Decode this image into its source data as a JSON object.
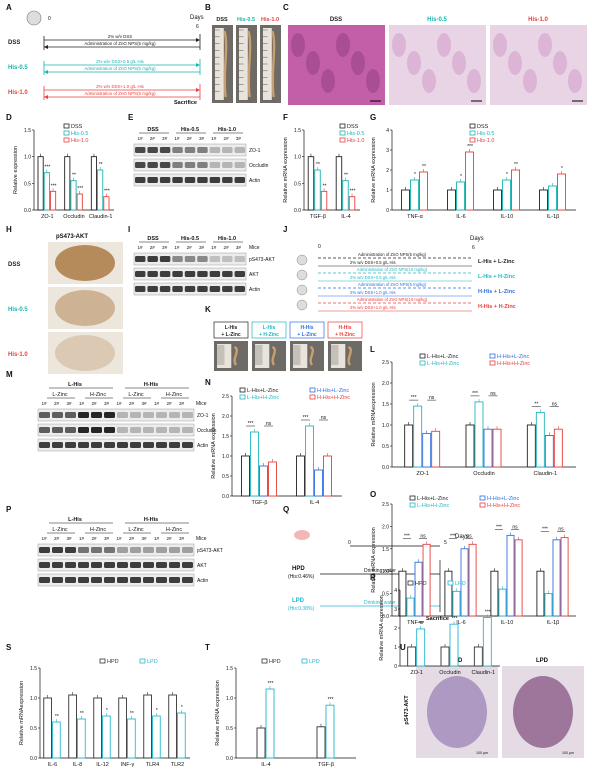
{
  "panel_letters": [
    "A",
    "B",
    "C",
    "D",
    "E",
    "F",
    "G",
    "H",
    "I",
    "J",
    "K",
    "L",
    "M",
    "N",
    "O",
    "P",
    "Q",
    "R",
    "S",
    "T",
    "U"
  ],
  "colors": {
    "dss": "#222222",
    "his05": "#17b5b0",
    "his10": "#e8403c",
    "lHisHZinc": "#22b8c0",
    "hHisLZinc": "#2f6fe0",
    "hHisHZinc": "#e8403c",
    "hpd": "#333333",
    "lpd": "#25b8d0",
    "stain_pink": "#c25fa8",
    "stain_brown": "#a8743c"
  },
  "A": {
    "days_label": "Days",
    "day0": "0",
    "day6": "6",
    "groups": [
      {
        "name": "DSS",
        "line1": "2% w/v DSS",
        "line2": "Administration of ZnO NPS(5 mg/kg)"
      },
      {
        "name": "His-0.5",
        "line1": "2% w/v DSS+0.5 g/L His",
        "line2": "Administration of ZnO NPS(5 mg/kg)"
      },
      {
        "name": "His-1.0",
        "line1": "2% w/v DSS+1.0 g/L His",
        "line2": "Administration of ZnO NPS(5 mg/kg)"
      }
    ],
    "sacrifice": "Sacrifice"
  },
  "B": {
    "labels": [
      "DSS",
      "His-0.5",
      "His-1.0"
    ]
  },
  "C": {
    "labels": [
      "DSS",
      "His-0.5",
      "His-1.0"
    ]
  },
  "legend3": [
    "DSS",
    "His-0.5",
    "His-1.0"
  ],
  "E": {
    "groups": [
      "DSS",
      "His-0.5",
      "His-1.0"
    ],
    "lanes": [
      "1#",
      "2#",
      "3#",
      "1#",
      "2#",
      "3#",
      "1#",
      "2#",
      "3#"
    ],
    "rows": [
      "ZO-1",
      "Occludin",
      "Actin"
    ]
  },
  "H": {
    "title": "pS473-AKT",
    "labels": [
      "DSS",
      "His-0.5",
      "His-1.0"
    ]
  },
  "I": {
    "groups": [
      "DSS",
      "His-0.5",
      "His-1.0"
    ],
    "lanes": [
      "1#",
      "2#",
      "3#",
      "1#",
      "2#",
      "3#",
      "1#",
      "2#",
      "3#"
    ],
    "mice": "Mice",
    "rows": [
      "pS473-AKT",
      "AKT",
      "Actin"
    ]
  },
  "J": {
    "days_label": "Days",
    "day0": "0",
    "day6": "6",
    "groups": [
      {
        "name": "L-His + L-Zinc",
        "line1": "Administration of ZnO NPS(5 mg/kg)",
        "line2": "2% w/v DSS+0.5 g/L His"
      },
      {
        "name": "L-His + H-Zinc",
        "line1": "Administration of ZnO NPS(10 mg/kg)",
        "line2": "2% w/v DSS+0.5 g/L His"
      },
      {
        "name": "H-His + L-Zinc",
        "line1": "Administration of ZnO NPS(5 mg/kg)",
        "line2": "2% w/v DSS+1.0 g/L His"
      },
      {
        "name": "H-His + H-Zinc",
        "line1": "Administration of ZnO NPS(10 mg/kg)",
        "line2": "2% w/v DSS+1.0 g/L His"
      }
    ]
  },
  "K": {
    "labels": [
      [
        "L-His",
        "+ L-Zinc"
      ],
      [
        "L-His",
        "+ H-Zinc"
      ],
      [
        "H-His",
        "+ L-Zinc"
      ],
      [
        "H-His",
        "+ H-Zinc"
      ]
    ]
  },
  "legend4": [
    "L-His+L-Zinc",
    "H-His+L-Zinc",
    "L-His+H-Zinc",
    "H-His+H-Zinc"
  ],
  "M": {
    "top": [
      "L-His",
      "H-His"
    ],
    "sub": [
      "L-Zinc",
      "H-Zinc",
      "L-Zinc",
      "H-Zinc"
    ],
    "lanes": [
      "1#",
      "2#",
      "3#",
      "1#",
      "2#",
      "3#",
      "1#",
      "2#",
      "3#",
      "1#",
      "2#",
      "3#"
    ],
    "mice": "Mice",
    "rows": [
      "ZO-1",
      "Occludin",
      "Actin"
    ]
  },
  "P": {
    "top": [
      "L-His",
      "H-His"
    ],
    "sub": [
      "L-Zinc",
      "H-Zinc",
      "L-Zinc",
      "H-Zinc"
    ],
    "lanes": [
      "1#",
      "2#",
      "3#",
      "1#",
      "2#",
      "3#",
      "1#",
      "2#",
      "3#",
      "1#",
      "2#",
      "3#"
    ],
    "mice": "Mice",
    "rows": [
      "pS473-AKT",
      "AKT",
      "Actin"
    ]
  },
  "Q": {
    "days_label": "Days",
    "day0": "0",
    "day5": "5",
    "hpd": "HPD",
    "hpd_sub": "(His:0.46%)",
    "lpd": "LPD",
    "lpd_sub": "(His:0.38%)",
    "water": "Drinking water",
    "sacrifice": "Sacrifice"
  },
  "legend2": [
    "HPD",
    "LPD"
  ],
  "U": {
    "labels": [
      "HPD",
      "LPD"
    ],
    "ylabel": "pS473-AKT",
    "scale1": "100 μm",
    "scale2": "100 μm"
  },
  "chart_data": [
    {
      "panel": "D",
      "type": "bar",
      "categories": [
        "ZO-1",
        "Occludin",
        "Claudin-1"
      ],
      "series": [
        {
          "name": "DSS",
          "values": [
            1.0,
            1.0,
            1.0
          ]
        },
        {
          "name": "His-0.5",
          "values": [
            0.7,
            0.55,
            0.75
          ]
        },
        {
          "name": "His-1.0",
          "values": [
            0.35,
            0.3,
            0.25
          ]
        }
      ],
      "ylabel": "Relative expression",
      "ylim": [
        0,
        1.5
      ],
      "yticks": [
        "0.0",
        "0.5",
        "1.0",
        "1.5"
      ],
      "sig": [
        [
          "***",
          "***"
        ],
        [
          "**",
          "***"
        ],
        [
          "**",
          "***"
        ]
      ]
    },
    {
      "panel": "F",
      "type": "bar",
      "categories": [
        "TGF-β",
        "IL-4"
      ],
      "series": [
        {
          "name": "DSS",
          "values": [
            1.0,
            1.0
          ]
        },
        {
          "name": "His-0.5",
          "values": [
            0.75,
            0.55
          ]
        },
        {
          "name": "His-1.0",
          "values": [
            0.35,
            0.25
          ]
        }
      ],
      "ylabel": "Relative mRNA expression",
      "ylim": [
        0,
        1.5
      ],
      "yticks": [
        "0.0",
        "0.5",
        "1.0",
        "1.5"
      ],
      "sig": [
        [
          "**",
          "**"
        ],
        [
          "**",
          "***"
        ]
      ]
    },
    {
      "panel": "G",
      "type": "bar",
      "categories": [
        "TNF-α",
        "IL-6",
        "IL-10",
        "IL-1β"
      ],
      "series": [
        {
          "name": "DSS",
          "values": [
            1.0,
            1.0,
            1.0,
            1.0
          ]
        },
        {
          "name": "His-0.5",
          "values": [
            1.5,
            1.4,
            1.5,
            1.2
          ]
        },
        {
          "name": "His-1.0",
          "values": [
            1.9,
            2.9,
            2.0,
            1.8
          ]
        }
      ],
      "ylabel": "Relative mRNA expression",
      "ylim": [
        0,
        4
      ],
      "yticks": [
        "0",
        "1",
        "2",
        "3",
        "4"
      ],
      "sig": [
        [
          "*",
          "**"
        ],
        [
          "*",
          "***"
        ],
        [
          "*",
          "**"
        ],
        [
          "",
          "*"
        ]
      ]
    },
    {
      "panel": "L",
      "type": "bar",
      "categories": [
        "ZO-1",
        "Occludin",
        "Claudin-1"
      ],
      "series": [
        {
          "name": "L-His+L-Zinc",
          "values": [
            1.0,
            1.0,
            1.0
          ]
        },
        {
          "name": "L-His+H-Zinc",
          "values": [
            1.45,
            1.55,
            1.3
          ]
        },
        {
          "name": "H-His+L-Zinc",
          "values": [
            0.8,
            0.9,
            0.75
          ]
        },
        {
          "name": "H-His+H-Zinc",
          "values": [
            0.85,
            0.9,
            0.9
          ]
        }
      ],
      "ylabel": "Relative mRNAexpression",
      "ylim": [
        0,
        2.5
      ],
      "yticks": [
        "0.0",
        "0.5",
        "1.0",
        "1.5",
        "2.0",
        "2.5"
      ],
      "sig": [
        "***",
        "ns",
        "***",
        "ns",
        "**",
        "ns"
      ]
    },
    {
      "panel": "N",
      "type": "bar",
      "categories": [
        "TGF-β",
        "IL-4"
      ],
      "series": [
        {
          "name": "L-His+L-Zinc",
          "values": [
            1.0,
            1.0
          ]
        },
        {
          "name": "L-His+H-Zinc",
          "values": [
            1.6,
            1.75
          ]
        },
        {
          "name": "H-His+L-Zinc",
          "values": [
            0.75,
            0.65
          ]
        },
        {
          "name": "H-His+H-Zinc",
          "values": [
            0.85,
            1.0
          ]
        }
      ],
      "ylabel": "Relative mRNA expression",
      "ylim": [
        0,
        2.5
      ],
      "yticks": [
        "0.0",
        "0.5",
        "1.0",
        "1.5",
        "2.0",
        "2.5"
      ],
      "sig": [
        "***",
        "ns",
        "***",
        "ns"
      ]
    },
    {
      "panel": "O",
      "type": "bar",
      "categories": [
        "TNF-α",
        "IL-6",
        "IL-10",
        "IL-1β"
      ],
      "series": [
        {
          "name": "L-His+L-Zinc",
          "values": [
            1.0,
            1.0,
            1.0,
            1.0
          ]
        },
        {
          "name": "L-His+H-Zinc",
          "values": [
            0.4,
            0.55,
            0.6,
            0.5
          ]
        },
        {
          "name": "H-His+L-Zinc",
          "values": [
            1.2,
            1.5,
            1.8,
            1.7
          ]
        },
        {
          "name": "H-His+H-Zinc",
          "values": [
            1.6,
            1.6,
            1.7,
            1.75
          ]
        }
      ],
      "ylabel": "Relative mRNA expression",
      "ylim": [
        0,
        2.5
      ],
      "yticks": [
        "0.0",
        "0.5",
        "1.0",
        "1.5",
        "2.0",
        "2.5"
      ],
      "sig": [
        "***",
        "ns",
        "***",
        "ns",
        "***",
        "ns",
        "***",
        "ns"
      ]
    },
    {
      "panel": "R",
      "type": "bar",
      "categories": [
        "ZO-1",
        "Occludin",
        "Claudin-1"
      ],
      "series": [
        {
          "name": "HPD",
          "values": [
            1.0,
            1.0,
            1.0
          ]
        },
        {
          "name": "LPD",
          "values": [
            1.95,
            2.2,
            2.55
          ]
        }
      ],
      "ylabel": "Relative  mRNA expression",
      "ylim": [
        0,
        4
      ],
      "yticks": [
        "0",
        "1",
        "2",
        "3",
        "4"
      ],
      "sig": [
        "***",
        "***",
        "***"
      ]
    },
    {
      "panel": "S",
      "type": "bar",
      "categories": [
        "IL-6",
        "IL-8",
        "IL-12",
        "INF-γ",
        "TLR4",
        "TLR2"
      ],
      "series": [
        {
          "name": "HPD",
          "values": [
            1.0,
            1.05,
            1.0,
            1.0,
            1.05,
            1.05
          ]
        },
        {
          "name": "LPD",
          "values": [
            0.6,
            0.65,
            0.7,
            0.65,
            0.7,
            0.75
          ]
        }
      ],
      "ylabel": "Relative mRNAexpression",
      "ylim": [
        0,
        1.5
      ],
      "yticks": [
        "0.0",
        "0.5",
        "1.0",
        "1.5"
      ],
      "sig": [
        "**",
        "**",
        "*",
        "**",
        "*",
        "*"
      ]
    },
    {
      "panel": "T",
      "type": "bar",
      "categories": [
        "IL-4",
        "TGF-β"
      ],
      "series": [
        {
          "name": "HPD",
          "values": [
            0.5,
            0.52
          ]
        },
        {
          "name": "LPD",
          "values": [
            1.15,
            0.88
          ]
        }
      ],
      "ylabel": "Relative mRNA expression",
      "ylim": [
        0,
        1.5
      ],
      "yticks": [
        "0.0",
        "0.5",
        "1.0",
        "1.5"
      ],
      "sig": [
        "***",
        "***"
      ]
    }
  ]
}
